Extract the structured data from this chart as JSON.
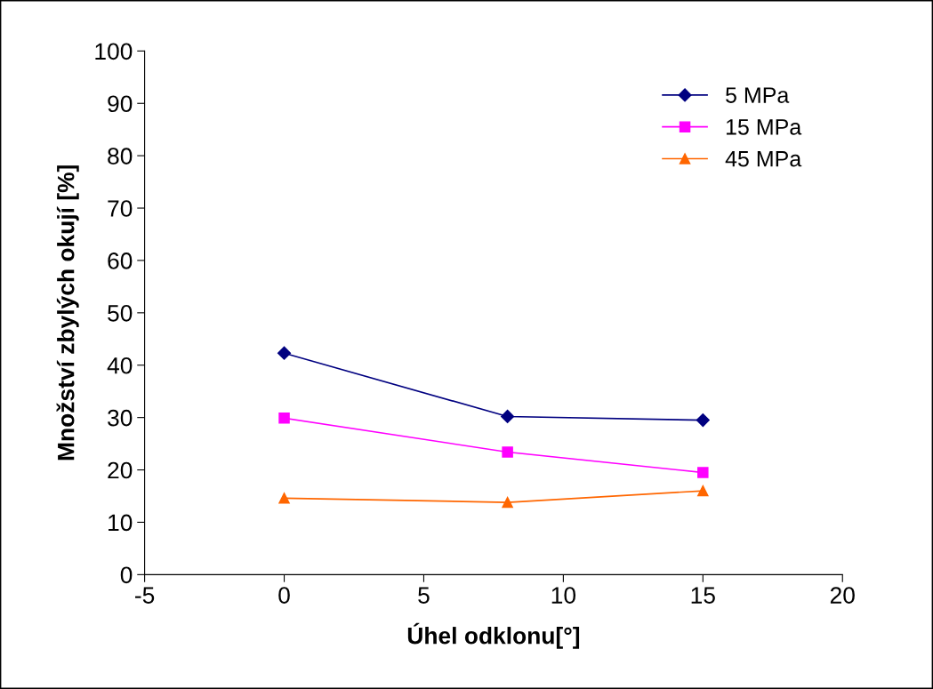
{
  "chart_data": {
    "type": "line",
    "xlabel": "Úhel odklonu[°]",
    "ylabel": "Množství zbylých okují [%]",
    "x": [
      0,
      8,
      15
    ],
    "series": [
      {
        "name": "5 MPa",
        "color": "#000080",
        "marker": "diamond",
        "values": [
          42.3,
          30.2,
          29.5
        ]
      },
      {
        "name": "15 MPa",
        "color": "#ff00ff",
        "marker": "square",
        "values": [
          29.9,
          23.4,
          19.5
        ]
      },
      {
        "name": "45 MPa",
        "color": "#ff6600",
        "marker": "triangle",
        "values": [
          14.6,
          13.8,
          16.0
        ]
      }
    ],
    "xlim": [
      -5,
      20
    ],
    "xticks": [
      -5,
      0,
      5,
      10,
      15,
      20
    ],
    "ylim": [
      0,
      100
    ],
    "yticks": [
      0,
      10,
      20,
      30,
      40,
      50,
      60,
      70,
      80,
      90,
      100
    ],
    "grid": false,
    "legend": "top right",
    "line_style": "solid"
  }
}
